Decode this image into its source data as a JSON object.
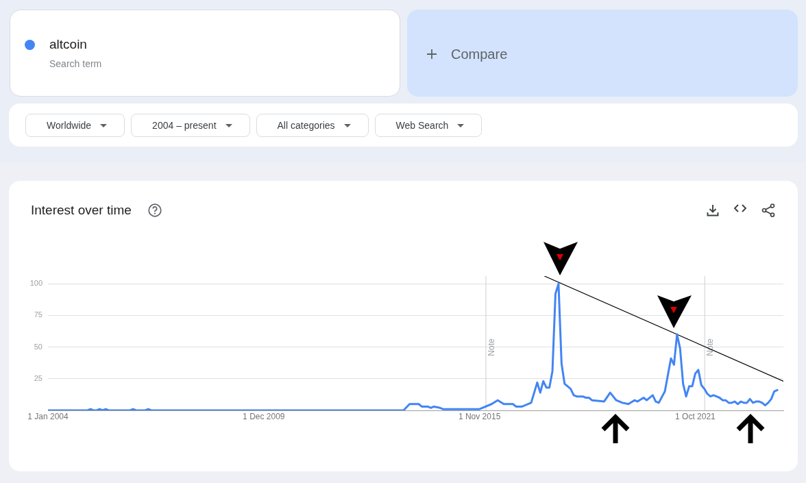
{
  "chart_data": {
    "type": "line",
    "title": "Interest over time",
    "annotations": [
      "Search term",
      "Compare",
      "Worldwide",
      "2004 – present",
      "All categories",
      "Web Search"
    ],
    "series": [
      {
        "name": "altcoin",
        "color": "#4285f4",
        "x": [
          "2004-01",
          "2005-02",
          "2005-03",
          "2005-04",
          "2005-05",
          "2005-06",
          "2005-07",
          "2005-08",
          "2005-09",
          "2006-04",
          "2006-05",
          "2006-06",
          "2006-09",
          "2006-10",
          "2006-11",
          "2013-10",
          "2013-12",
          "2014-03",
          "2014-04",
          "2014-06",
          "2014-07",
          "2014-08",
          "2014-10",
          "2014-11",
          "2015-11",
          "2016-03",
          "2016-05",
          "2016-07",
          "2016-10",
          "2016-11",
          "2017-01",
          "2017-04",
          "2017-06",
          "2017-07",
          "2017-08",
          "2017-09",
          "2017-10",
          "2017-11",
          "2017-12",
          "2018-01",
          "2018-02",
          "2018-03",
          "2018-05",
          "2018-06",
          "2018-07",
          "2018-09",
          "2018-10",
          "2018-11",
          "2018-12",
          "2019-04",
          "2019-06",
          "2019-08",
          "2019-10",
          "2019-12",
          "2020-02",
          "2020-03",
          "2020-05",
          "2020-06",
          "2020-08",
          "2020-09",
          "2020-10",
          "2020-12",
          "2021-02",
          "2021-03",
          "2021-04",
          "2021-05",
          "2021-06",
          "2021-07",
          "2021-08",
          "2021-09",
          "2021-10",
          "2021-11",
          "2021-12",
          "2022-01",
          "2022-02",
          "2022-03",
          "2022-04",
          "2022-05",
          "2022-06",
          "2022-07",
          "2022-08",
          "2022-09",
          "2022-10",
          "2022-11",
          "2022-12",
          "2023-01",
          "2023-02",
          "2023-03",
          "2023-04",
          "2023-05",
          "2023-06",
          "2023-07",
          "2023-08",
          "2023-09",
          "2023-10",
          "2023-11",
          "2023-12",
          "2024-01"
        ],
        "values": [
          0,
          0,
          1,
          0,
          0,
          1,
          0,
          1,
          0,
          0,
          1,
          0,
          0,
          1,
          0,
          0,
          5,
          5,
          3,
          3,
          2,
          3,
          2,
          1,
          1,
          5,
          8,
          5,
          5,
          3,
          3,
          6,
          22,
          14,
          23,
          18,
          18,
          31,
          92,
          100,
          37,
          21,
          17,
          12,
          11,
          11,
          10,
          10,
          8,
          7,
          14,
          8,
          6,
          5,
          8,
          7,
          10,
          8,
          12,
          7,
          6,
          15,
          41,
          36,
          60,
          49,
          21,
          11,
          19,
          19,
          29,
          32,
          20,
          17,
          13,
          11,
          12,
          11,
          10,
          8,
          8,
          6,
          6,
          7,
          5,
          7,
          6,
          6,
          9,
          6,
          7,
          7,
          6,
          4,
          6,
          9,
          15,
          16
        ]
      },
      {
        "color": "#000000",
        "x": [
          "2017-08-13",
          "2024-03-01"
        ],
        "values": [
          106,
          23
        ]
      }
    ],
    "xlim": [
      "2004-01-01",
      "2024-03-01"
    ],
    "xticks": [
      {
        "value": "2004-01-01",
        "label": "1 Jan 2004"
      },
      {
        "value": "2009-12-01",
        "label": "1 Dec 2009"
      },
      {
        "value": "2015-11-01",
        "label": "1 Nov 2015"
      },
      {
        "value": "2021-10-01",
        "label": "1 Oct 2021"
      }
    ],
    "ylim": [
      0,
      106
    ],
    "yticks": [
      {
        "value": 0,
        "label": null
      },
      25,
      50,
      75,
      100
    ],
    "grid": "y",
    "legend": "top left",
    "ref_lines": [
      {
        "axis": "x",
        "value": "2016-01-01",
        "label": "Note"
      },
      {
        "axis": "x",
        "value": "2022-01-01",
        "label": "Note"
      }
    ]
  }
}
